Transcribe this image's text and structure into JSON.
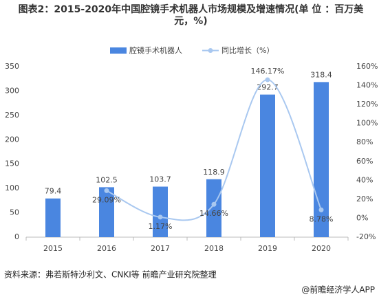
{
  "chart_data": {
    "type": "combo",
    "title": "图表2：2015-2020年中国腔镜手术机器人市场规模及增速情况(单 位 ：百万美元，%)",
    "categories": [
      "2015",
      "2016",
      "2017",
      "2018",
      "2019",
      "2020"
    ],
    "series": [
      {
        "name": "腔镜手术机器人",
        "type": "bar",
        "color": "#4a86e0",
        "values": [
          79.4,
          102.5,
          103.7,
          118.9,
          292.7,
          318.4
        ]
      },
      {
        "name": "同比增长（%）",
        "type": "line",
        "axis": "y2",
        "color": "#a9c8f0",
        "values": [
          null,
          29.09,
          1.17,
          14.66,
          146.17,
          8.78
        ],
        "value_labels": [
          null,
          "29.09%",
          "1.17%",
          "14.66%",
          "146.17%",
          "8.78%"
        ]
      }
    ],
    "ylim": [
      0,
      350
    ],
    "yticks": [
      0,
      50,
      100,
      150,
      200,
      250,
      300,
      350
    ],
    "y2lim": [
      -20,
      160
    ],
    "y2ticks": [
      {
        "value": -20,
        "label": "-20%"
      },
      {
        "value": 0,
        "label": "0%"
      },
      {
        "value": 20,
        "label": "20%"
      },
      {
        "value": 40,
        "label": "40%"
      },
      {
        "value": 60,
        "label": "60%"
      },
      {
        "value": 80,
        "label": "80%"
      },
      {
        "value": 100,
        "label": "100%"
      },
      {
        "value": 120,
        "label": "120%"
      },
      {
        "value": 140,
        "label": "140%"
      },
      {
        "value": 160,
        "label": "160%"
      }
    ],
    "legend": "top"
  },
  "source": "资料来源：弗若斯特沙利文、CNKI等 前瞻产业研究院整理",
  "footer": "@前瞻经济学人APP"
}
